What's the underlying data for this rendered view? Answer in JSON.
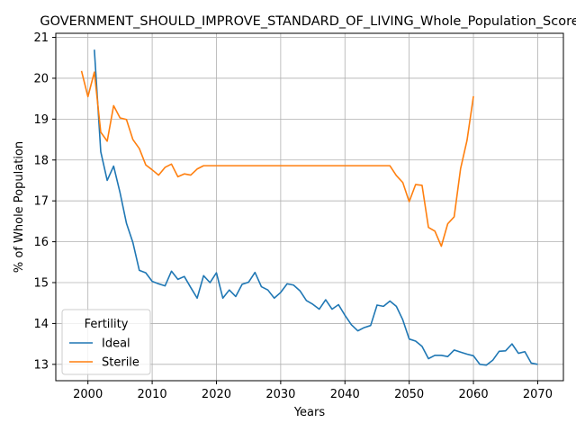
{
  "chart_data": {
    "type": "line",
    "title": "GOVERNMENT_SHOULD_IMPROVE_STANDARD_OF_LIVING_Whole_Population_Score",
    "xlabel": "Years",
    "ylabel": "% of Whole Population",
    "xlim": [
      1995,
      2074
    ],
    "ylim": [
      12.6,
      21.1
    ],
    "xticks": [
      2000,
      2010,
      2020,
      2030,
      2040,
      2050,
      2060,
      2070
    ],
    "yticks": [
      13,
      14,
      15,
      16,
      17,
      18,
      19,
      20,
      21
    ],
    "grid": true,
    "legend": {
      "title": "Fertility",
      "placement": "lower-left"
    },
    "series": [
      {
        "name": "Ideal",
        "color": "#1f77b4",
        "x": [
          2001,
          2002,
          2003,
          2004,
          2005,
          2006,
          2007,
          2008,
          2009,
          2010,
          2011,
          2012,
          2013,
          2014,
          2015,
          2016,
          2017,
          2018,
          2019,
          2020,
          2021,
          2022,
          2023,
          2024,
          2025,
          2026,
          2027,
          2028,
          2029,
          2030,
          2031,
          2032,
          2033,
          2034,
          2035,
          2036,
          2037,
          2038,
          2039,
          2040,
          2041,
          2042,
          2043,
          2044,
          2045,
          2046,
          2047,
          2048,
          2049,
          2050,
          2051,
          2052,
          2053,
          2054,
          2055,
          2056,
          2057,
          2058,
          2059,
          2060,
          2061,
          2062,
          2063,
          2064,
          2065,
          2066,
          2067,
          2068,
          2069,
          2070
        ],
        "y": [
          20.7,
          18.2,
          17.5,
          17.85,
          17.2,
          16.45,
          15.98,
          15.3,
          15.24,
          15.03,
          14.97,
          14.92,
          15.28,
          15.08,
          15.15,
          14.88,
          14.62,
          15.17,
          15.0,
          15.24,
          14.62,
          14.82,
          14.66,
          14.96,
          15.01,
          15.25,
          14.9,
          14.82,
          14.62,
          14.76,
          14.97,
          14.94,
          14.8,
          14.56,
          14.47,
          14.35,
          14.58,
          14.35,
          14.46,
          14.2,
          13.97,
          13.82,
          13.9,
          13.95,
          14.45,
          14.42,
          14.55,
          14.42,
          14.09,
          13.62,
          13.57,
          13.44,
          13.14,
          13.22,
          13.22,
          13.19,
          13.35,
          13.3,
          13.25,
          13.21,
          13.0,
          12.98,
          13.1,
          13.32,
          13.33,
          13.5,
          13.27,
          13.31,
          13.03,
          13.0
        ]
      },
      {
        "name": "Sterile",
        "color": "#ff7f0e",
        "x": [
          1999,
          2000,
          2001,
          2002,
          2003,
          2004,
          2005,
          2006,
          2007,
          2008,
          2009,
          2010,
          2011,
          2012,
          2013,
          2014,
          2015,
          2016,
          2017,
          2018,
          2019,
          2020,
          2021,
          2022,
          2023,
          2024,
          2025,
          2026,
          2027,
          2028,
          2029,
          2030,
          2031,
          2032,
          2033,
          2034,
          2035,
          2036,
          2037,
          2038,
          2039,
          2040,
          2041,
          2042,
          2043,
          2044,
          2045,
          2046,
          2047,
          2048,
          2049,
          2050,
          2051,
          2052,
          2053,
          2054,
          2055,
          2056,
          2057,
          2058,
          2059,
          2060
        ],
        "y": [
          20.18,
          19.55,
          20.15,
          18.68,
          18.46,
          19.33,
          19.03,
          18.99,
          18.5,
          18.28,
          17.88,
          17.76,
          17.63,
          17.82,
          17.9,
          17.59,
          17.66,
          17.63,
          17.78,
          17.86,
          17.86,
          17.86,
          17.86,
          17.86,
          17.86,
          17.86,
          17.86,
          17.86,
          17.86,
          17.86,
          17.86,
          17.86,
          17.86,
          17.86,
          17.86,
          17.86,
          17.86,
          17.86,
          17.86,
          17.86,
          17.86,
          17.86,
          17.86,
          17.86,
          17.86,
          17.86,
          17.86,
          17.86,
          17.86,
          17.62,
          17.45,
          16.98,
          17.4,
          17.38,
          16.35,
          16.26,
          15.89,
          16.44,
          16.61,
          17.79,
          18.48,
          19.56
        ]
      }
    ]
  }
}
